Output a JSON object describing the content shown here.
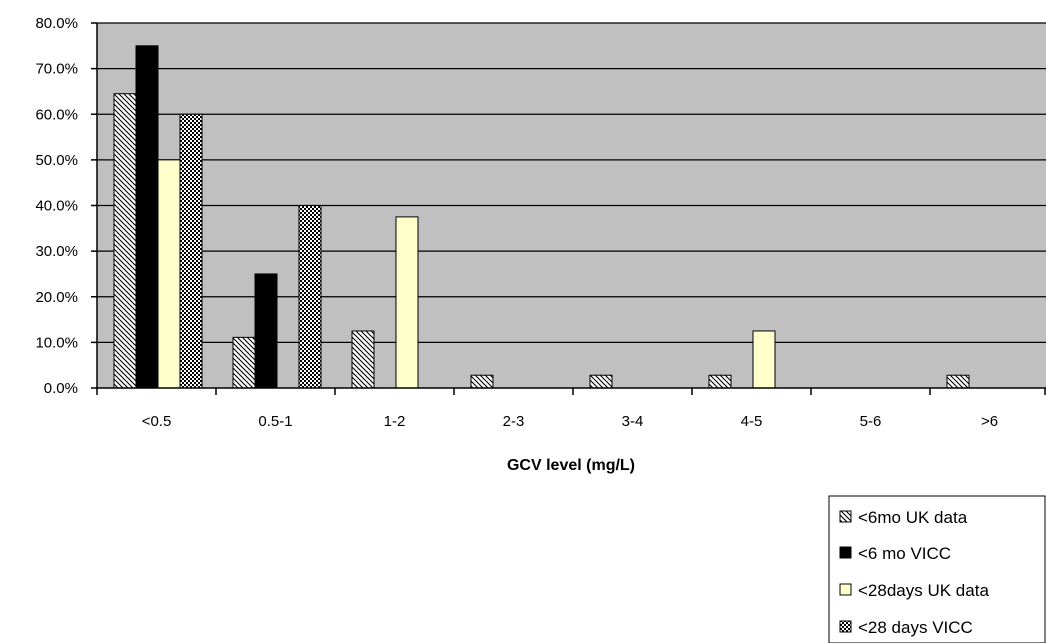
{
  "chart_data": {
    "type": "bar",
    "title": "",
    "xlabel": "GCV level (mg/L)",
    "ylabel": "",
    "ylim": [
      0,
      80
    ],
    "y_ticks": [
      "0.0%",
      "10.0%",
      "20.0%",
      "30.0%",
      "40.0%",
      "50.0%",
      "60.0%",
      "70.0%",
      "80.0%"
    ],
    "categories": [
      "<0.5",
      "0.5-1",
      "1-2",
      "2-3",
      "3-4",
      "4-5",
      "5-6",
      ">6"
    ],
    "series": [
      {
        "name": "<6mo UK data",
        "values": [
          64.5,
          11.1,
          12.5,
          2.8,
          2.8,
          2.8,
          0,
          2.8
        ],
        "pattern": "diagonal-hatch"
      },
      {
        "name": "<6 mo VICC",
        "values": [
          75,
          25,
          0,
          0,
          0,
          0,
          0,
          0
        ],
        "pattern": "solid-black"
      },
      {
        "name": "<28days UK data",
        "values": [
          50,
          0,
          37.5,
          0,
          0,
          12.5,
          0,
          0
        ],
        "pattern": "solid-light-yellow"
      },
      {
        "name": "<28 days VICC",
        "values": [
          60,
          40,
          0,
          0,
          0,
          0,
          0,
          0
        ],
        "pattern": "checker"
      }
    ],
    "grid": true,
    "legend_position": "bottom-right",
    "colors": {
      "plot_background": "#c0c0c0",
      "black": "#000000",
      "light_yellow": "#ffffcc",
      "white": "#ffffff"
    }
  }
}
